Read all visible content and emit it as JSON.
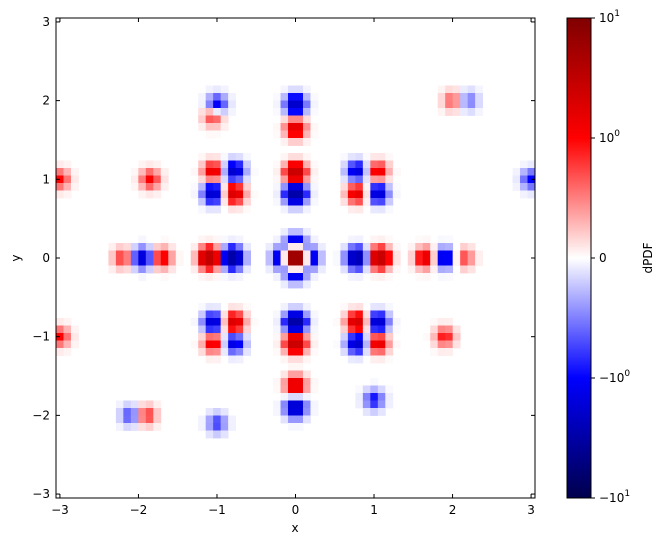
{
  "chart_data": {
    "type": "heatmap",
    "title": "",
    "xlabel": "x",
    "ylabel": "y",
    "xlim": [
      -3.05,
      3.05
    ],
    "ylim": [
      -3.05,
      3.05
    ],
    "x_ticks": [
      {
        "value": -3,
        "label": "−3"
      },
      {
        "value": -2,
        "label": "−2"
      },
      {
        "value": -1,
        "label": "−1"
      },
      {
        "value": 0,
        "label": "0"
      },
      {
        "value": 1,
        "label": "1"
      },
      {
        "value": 2,
        "label": "2"
      },
      {
        "value": 3,
        "label": "3"
      }
    ],
    "y_ticks": [
      {
        "value": -3,
        "label": "−3"
      },
      {
        "value": -2,
        "label": "−2"
      },
      {
        "value": -1,
        "label": "−1"
      },
      {
        "value": 0,
        "label": "0"
      },
      {
        "value": 1,
        "label": "1"
      },
      {
        "value": 2,
        "label": "2"
      },
      {
        "value": 3,
        "label": "3"
      }
    ],
    "colorbar": {
      "label": "dPDF",
      "colormap": "seismic",
      "scale": "symlog",
      "range": [
        -10,
        10
      ],
      "ticks": [
        {
          "value": 10,
          "label_base": "10",
          "label_exp": "1",
          "sign": ""
        },
        {
          "value": 1,
          "label_base": "10",
          "label_exp": "0",
          "sign": ""
        },
        {
          "value": 0,
          "label_base": "0",
          "label_exp": "",
          "sign": ""
        },
        {
          "value": -1,
          "label_base": "10",
          "label_exp": "0",
          "sign": "−"
        },
        {
          "value": -10,
          "label_base": "10",
          "label_exp": "1",
          "sign": "−"
        }
      ]
    },
    "grid_resolution": 64,
    "features": [
      {
        "x": 0,
        "y": 0,
        "peak_value": 10,
        "description": "dark red center"
      },
      {
        "x": 0,
        "y": 0.16,
        "value": -2.5
      },
      {
        "x": 0,
        "y": -0.16,
        "value": -2.5
      },
      {
        "x": 0.16,
        "y": 0,
        "value": -2.5
      },
      {
        "x": -0.16,
        "y": 0,
        "value": -2.5
      },
      {
        "x": 0,
        "y": 1.08,
        "value": 3
      },
      {
        "x": 0,
        "y": 0.82,
        "value": -3.5
      },
      {
        "x": 0,
        "y": -0.82,
        "value": -3.5
      },
      {
        "x": 0,
        "y": -1.08,
        "value": 3
      },
      {
        "x": -1.1,
        "y": 0,
        "value": 3.5
      },
      {
        "x": -0.8,
        "y": 0,
        "value": -3.5
      },
      {
        "x": 0.78,
        "y": 0,
        "value": -3
      },
      {
        "x": 1.07,
        "y": 0,
        "value": 3.2
      },
      {
        "x": 0,
        "y": 1.95,
        "value": -2.2
      },
      {
        "x": 0,
        "y": 1.65,
        "value": 1.8
      },
      {
        "x": 0,
        "y": -1.62,
        "value": 1.8
      },
      {
        "x": 0,
        "y": -1.9,
        "value": -2.2
      },
      {
        "x": -1.05,
        "y": 1.1,
        "value": 1.5
      },
      {
        "x": -0.78,
        "y": 1.1,
        "value": -2
      },
      {
        "x": -1.05,
        "y": 0.82,
        "value": -2
      },
      {
        "x": -0.78,
        "y": 0.82,
        "value": 2
      },
      {
        "x": 0.78,
        "y": 1.1,
        "value": -1.6
      },
      {
        "x": 1.05,
        "y": 1.1,
        "value": 1.3
      },
      {
        "x": 0.78,
        "y": 0.82,
        "value": 1.6
      },
      {
        "x": 1.05,
        "y": 0.82,
        "value": -1.8
      },
      {
        "x": -1.05,
        "y": -0.82,
        "value": -1.8
      },
      {
        "x": -0.78,
        "y": -0.82,
        "value": 2
      },
      {
        "x": -1.05,
        "y": -1.08,
        "value": 1.3
      },
      {
        "x": -0.78,
        "y": -1.08,
        "value": -1.5
      },
      {
        "x": 0.78,
        "y": -0.82,
        "value": 2.2
      },
      {
        "x": 1.05,
        "y": -0.82,
        "value": -2
      },
      {
        "x": 0.78,
        "y": -1.08,
        "value": -2
      },
      {
        "x": 1.05,
        "y": -1.08,
        "value": 1.6
      },
      {
        "x": -1.95,
        "y": 0,
        "value": -1.8
      },
      {
        "x": -1.7,
        "y": 0,
        "value": 1.3
      },
      {
        "x": -2.2,
        "y": 0,
        "value": 0.9
      },
      {
        "x": 1.65,
        "y": 0,
        "value": 1.6
      },
      {
        "x": 1.9,
        "y": 0,
        "value": -1.6
      },
      {
        "x": 2.15,
        "y": 0,
        "value": 0.8
      },
      {
        "x": -1.0,
        "y": 1.95,
        "value": -1.2
      },
      {
        "x": -1.05,
        "y": 1.8,
        "value": 0.9
      },
      {
        "x": -1.85,
        "y": 1.0,
        "value": 1.1
      },
      {
        "x": -3.0,
        "y": 1.0,
        "value": 1.0
      },
      {
        "x": -3.0,
        "y": -1.0,
        "value": 1.0
      },
      {
        "x": 3.0,
        "y": 1.0,
        "value": -1.0
      },
      {
        "x": 1.0,
        "y": -1.8,
        "value": -1.0
      },
      {
        "x": 1.9,
        "y": -1.0,
        "value": 1.0
      },
      {
        "x": -1.9,
        "y": -2.0,
        "value": 0.9
      },
      {
        "x": -2.1,
        "y": -2.0,
        "value": -0.8
      },
      {
        "x": -1.0,
        "y": -2.1,
        "value": -0.8
      },
      {
        "x": 2.0,
        "y": 2.0,
        "value": 0.7
      },
      {
        "x": 2.2,
        "y": 2.0,
        "value": -0.6
      }
    ]
  }
}
